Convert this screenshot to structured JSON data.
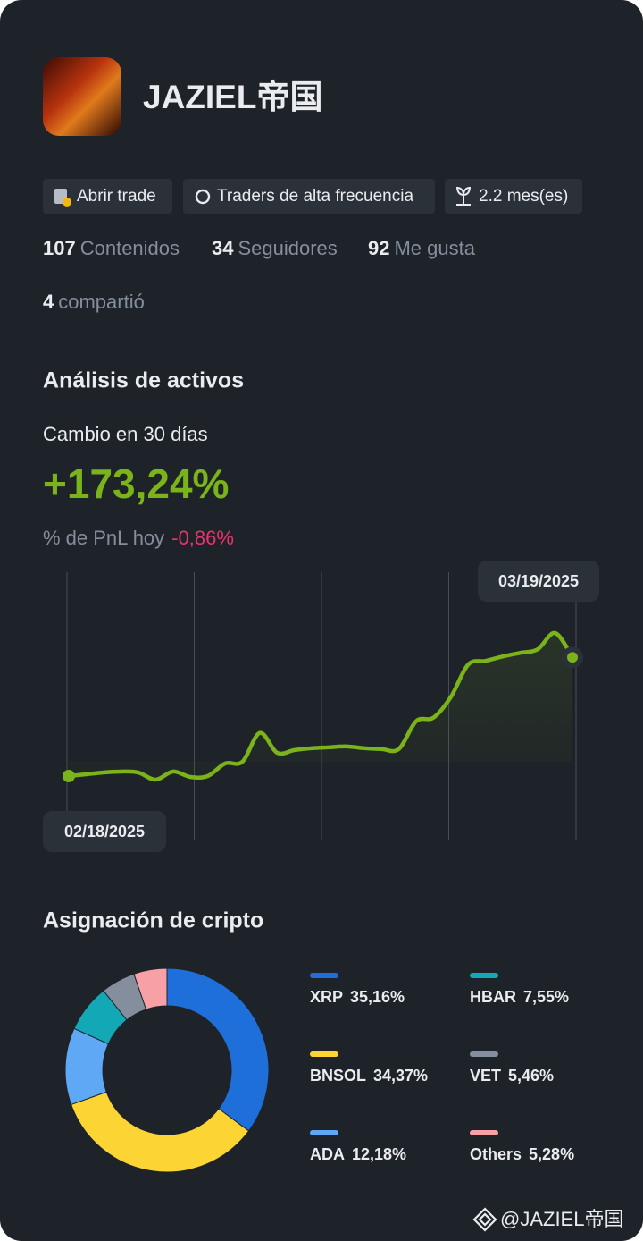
{
  "profile": {
    "name": "JAZIEL帝国",
    "tags": [
      "Abrir trade",
      "Traders de alta frecuencia",
      "2.2 mes(es)"
    ],
    "stats": [
      {
        "value": 107,
        "label": "Contenidos"
      },
      {
        "value": 34,
        "label": "Seguidores"
      },
      {
        "value": 92,
        "label": "Me gusta"
      },
      {
        "value": 4,
        "label": "compartió"
      }
    ]
  },
  "analysis": {
    "title": "Análisis de activos",
    "change_label": "Cambio en 30 días",
    "change": "+173,24%",
    "pnl_label": "% de PnL hoy",
    "pnl": "-0,86%",
    "chart": {
      "type": "line",
      "color": "#7bb31a",
      "categories": [
        "02/18/2025",
        null,
        null,
        null,
        null,
        null,
        null,
        null,
        null,
        null,
        null,
        null,
        null,
        null,
        null,
        null,
        null,
        null,
        null,
        null,
        null,
        null,
        null,
        null,
        null,
        null,
        null,
        null,
        null,
        "03/19/2025"
      ],
      "values": [
        0,
        2.6,
        5.2,
        6.6,
        5.2,
        -5.2,
        6.6,
        -1.3,
        0,
        18.4,
        21,
        63,
        34,
        38,
        40.7,
        42,
        43.3,
        40.7,
        39.4,
        39.4,
        80,
        85.3,
        115.5,
        162.7,
        168,
        174.5,
        179.8,
        185,
        208.7,
        173.24
      ]
    }
  },
  "allocation": {
    "title": "Asignación de cripto",
    "chart": {
      "type": "pie",
      "categories": [
        "XRP",
        "BNSOL",
        "ADA",
        "HBAR",
        "VET",
        "Others"
      ],
      "values": [
        35.16,
        34.37,
        12.18,
        7.55,
        5.46,
        5.28
      ],
      "value_labels": [
        "35,16%",
        "34,37%",
        "12,18%",
        "7,55%",
        "5,46%",
        "5,28%"
      ],
      "colors": [
        "#1e6fd9",
        "#fcd535",
        "#5ea8f5",
        "#12a8b5",
        "#858e9c",
        "#f7a1a6"
      ]
    }
  },
  "watermark": "@JAZIEL帝国"
}
